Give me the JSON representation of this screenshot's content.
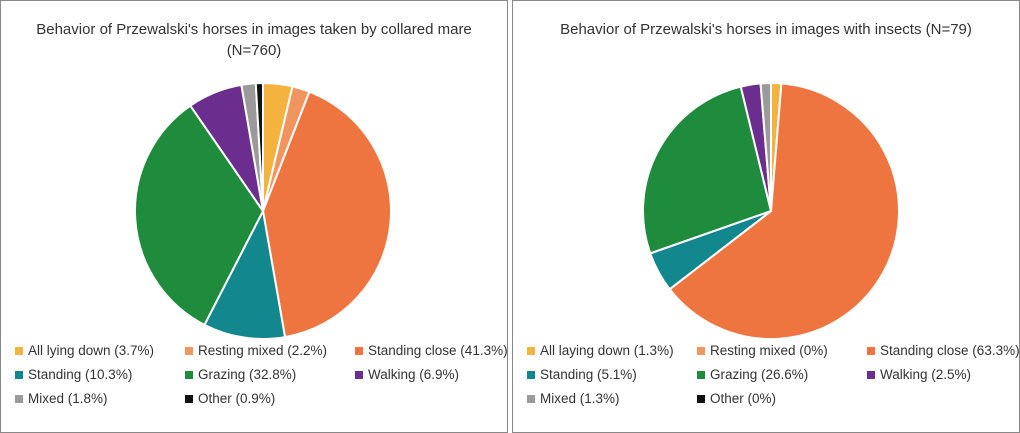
{
  "chart_data": [
    {
      "type": "pie",
      "title": "Behavior of Przewalski's horses in images taken by collared mare (N=760)",
      "categories": [
        "All lying down (3.7%)",
        "Resting mixed (2.2%)",
        "Standing close (41.3%)",
        "Standing (10.3%)",
        "Grazing (32.8%)",
        "Walking (6.9%)",
        "Mixed (1.8%)",
        "Other (0.9%)"
      ],
      "values": [
        3.7,
        2.2,
        41.3,
        10.3,
        32.8,
        6.9,
        1.8,
        0.9
      ],
      "colors": [
        "#f4b23e",
        "#f0955e",
        "#ee7440",
        "#13878e",
        "#1f8b3c",
        "#6b2e8f",
        "#9a9a9a",
        "#111111"
      ]
    },
    {
      "type": "pie",
      "title": "Behavior of Przewalski's horses in images with insects (N=79)",
      "categories": [
        "All laying down (1.3%)",
        "Resting mixed (0%)",
        "Standing close (63.3%)",
        "Standing (5.1%)",
        "Grazing (26.6%)",
        "Walking (2.5%)",
        "Mixed (1.3%)",
        "Other (0%)"
      ],
      "values": [
        1.3,
        0,
        63.3,
        5.1,
        26.6,
        2.5,
        1.3,
        0
      ],
      "colors": [
        "#f4b23e",
        "#f0955e",
        "#ee7440",
        "#13878e",
        "#1f8b3c",
        "#6b2e8f",
        "#9a9a9a",
        "#111111"
      ]
    }
  ]
}
